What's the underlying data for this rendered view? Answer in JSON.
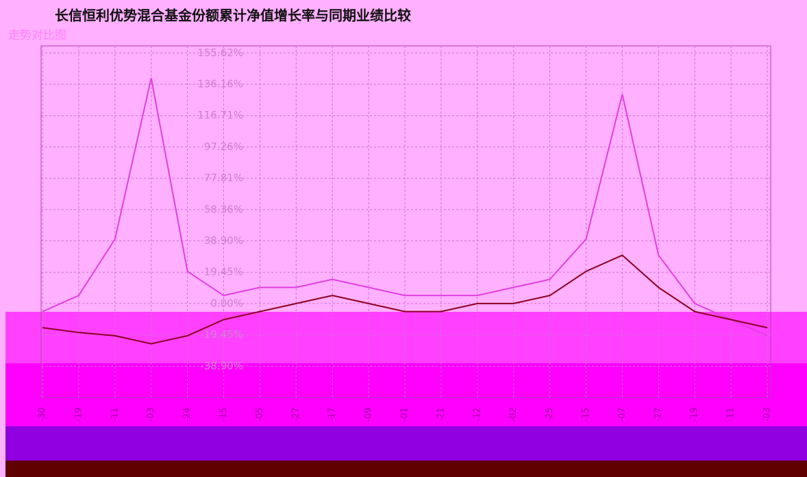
{
  "chart_data": {
    "type": "line",
    "title": "长信恒利优势混合基金份额累计净值增长率与同期业绩比较",
    "subtitle": "走势对比图",
    "categories": [
      "-30",
      "-19",
      "-11",
      "-03",
      "-24",
      "-15",
      "-05",
      "-27",
      "-17",
      "-09",
      "-01",
      "-21",
      "-12",
      "-02",
      "-25",
      "-15",
      "-07",
      "-27",
      "-19",
      "-11",
      "-03"
    ],
    "series": [
      {
        "name": null,
        "color": "#e040e0",
        "values": [
          -5,
          5,
          40,
          140,
          20,
          5,
          10,
          10,
          15,
          10,
          5,
          5,
          5,
          10,
          15,
          40,
          130,
          30,
          0,
          -10,
          -20
        ]
      },
      {
        "name": null,
        "color": "#8b0020",
        "values": [
          -15,
          -18,
          -20,
          -25,
          -20,
          -10,
          -5,
          0,
          5,
          0,
          -5,
          -5,
          0,
          0,
          5,
          20,
          30,
          10,
          -5,
          -10,
          -15
        ]
      }
    ],
    "ylim": [
      -58.36,
      160
    ],
    "yticks": [
      {
        "value": -38.9,
        "label": "-38.90%"
      },
      {
        "value": -19.45,
        "label": "-19.45%"
      },
      {
        "value": 0,
        "label": "0.00%"
      },
      {
        "value": 19.45,
        "label": "19.45%"
      },
      {
        "value": 38.9,
        "label": "38.90%"
      },
      {
        "value": 58.36,
        "label": "58.36%"
      },
      {
        "value": 77.81,
        "label": "77.81%"
      },
      {
        "value": 97.26,
        "label": "97.26%"
      },
      {
        "value": 116.71,
        "label": "116.71%"
      },
      {
        "value": 136.16,
        "label": "136.16%"
      },
      {
        "value": 155.62,
        "label": "155.62%"
      }
    ],
    "grid": true
  }
}
